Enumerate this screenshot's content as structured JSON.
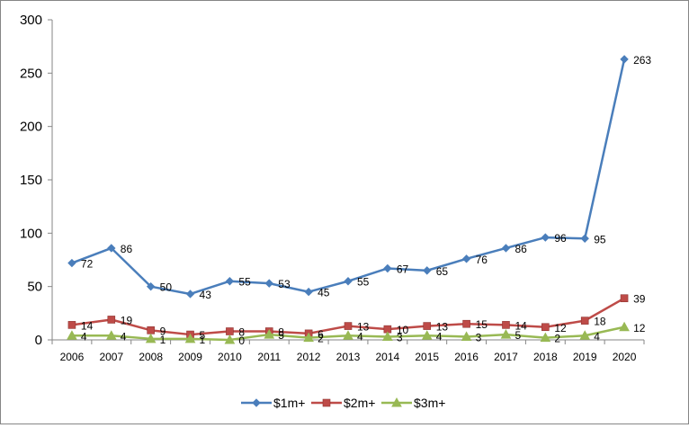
{
  "chart_data": {
    "type": "line",
    "title": "",
    "xlabel": "",
    "ylabel": "",
    "x": [
      "2006",
      "2007",
      "2008",
      "2009",
      "2010",
      "2011",
      "2012",
      "2013",
      "2014",
      "2015",
      "2016",
      "2017",
      "2018",
      "2019",
      "2020"
    ],
    "ylim": [
      0,
      300
    ],
    "yticks": [
      0,
      50,
      100,
      150,
      200,
      250,
      300
    ],
    "grid": false,
    "legend_position": "bottom",
    "series": [
      {
        "name": "$1m+",
        "color": "#4A7EBB",
        "marker": "diamond",
        "values": [
          72,
          86,
          50,
          43,
          55,
          53,
          45,
          55,
          67,
          65,
          76,
          86,
          96,
          95,
          263
        ]
      },
      {
        "name": "$2m+",
        "color": "#BE4B48",
        "marker": "square",
        "values": [
          14,
          19,
          9,
          5,
          8,
          8,
          6,
          13,
          10,
          13,
          15,
          14,
          12,
          18,
          39
        ]
      },
      {
        "name": "$3m+",
        "color": "#98B954",
        "marker": "triangle",
        "values": [
          4,
          4,
          1,
          1,
          0,
          5,
          2,
          4,
          3,
          4,
          3,
          5,
          2,
          4,
          12
        ]
      }
    ]
  }
}
